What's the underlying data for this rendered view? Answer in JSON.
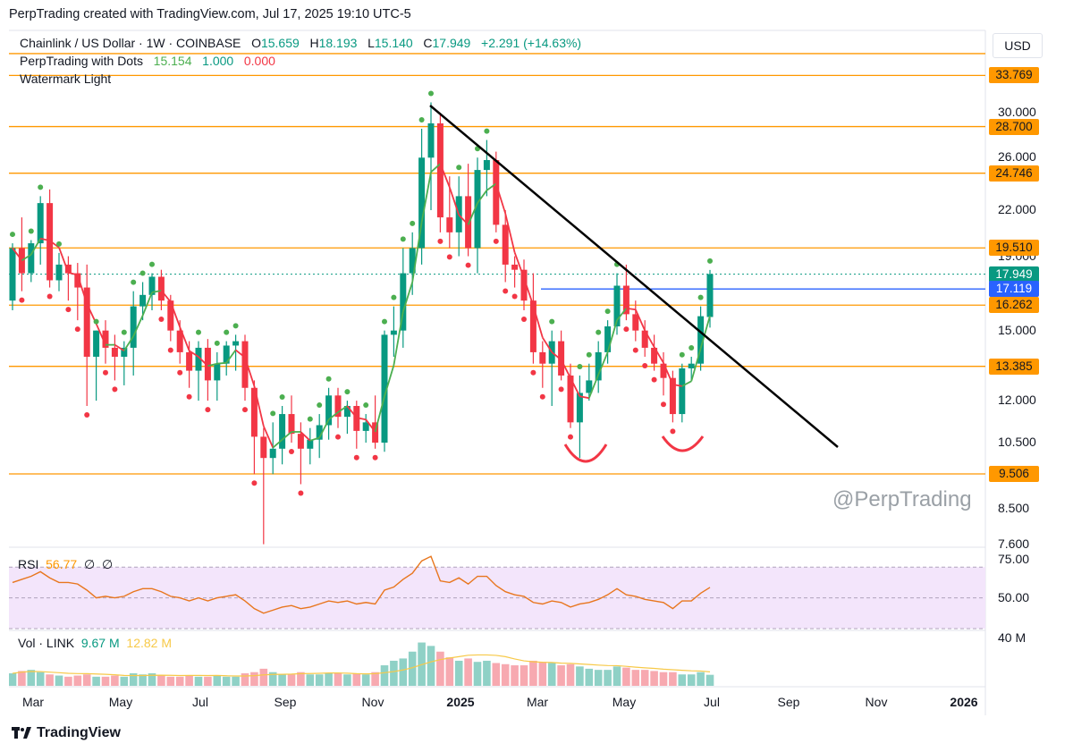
{
  "header": {
    "top_line": "PerpTrading created with TradingView.com, Jul 17, 2025 19:10 UTC-5",
    "symbol": "Chainlink / US Dollar · 1W · COINBASE",
    "o_label": "O",
    "o_value": "15.659",
    "h_label": "H",
    "h_value": "18.193",
    "l_label": "L",
    "l_value": "15.140",
    "c_label": "C",
    "c_value": "17.949",
    "change": "+2.291 (+14.63%)",
    "indicator_name": "PerpTrading with Dots",
    "ind_v1": "15.154",
    "ind_v2": "1.000",
    "ind_v3": "0.000",
    "watermark_line": "Watermark Light"
  },
  "currency_button": "USD",
  "watermark": "@PerpTrading",
  "brand": "TradingView",
  "rsi": {
    "label": "RSI",
    "value": "56.77",
    "extra1": "∅",
    "extra2": "∅",
    "axis": [
      "75.00",
      "50.00"
    ]
  },
  "volume": {
    "label": "Vol · LINK",
    "v1": "9.67 M",
    "v2": "12.82 M",
    "axis": "40 M"
  },
  "price_axis": [
    "30.000",
    "26.000",
    "22.000",
    "19.000",
    "15.000",
    "12.000",
    "10.500",
    "8.500",
    "7.600"
  ],
  "price_tags": [
    {
      "text": "33.769",
      "kind": "level"
    },
    {
      "text": "28.700",
      "kind": "level"
    },
    {
      "text": "24.746",
      "kind": "level"
    },
    {
      "text": "19.510",
      "kind": "level"
    },
    {
      "text": "17.949",
      "kind": "last"
    },
    {
      "text": "17.119",
      "kind": "line"
    },
    {
      "text": "16.262",
      "kind": "level"
    },
    {
      "text": "13.385",
      "kind": "level"
    },
    {
      "text": "9.506",
      "kind": "level"
    }
  ],
  "time_axis": [
    {
      "text": "Mar",
      "bold": false
    },
    {
      "text": "May",
      "bold": false
    },
    {
      "text": "Jul",
      "bold": false
    },
    {
      "text": "Sep",
      "bold": false
    },
    {
      "text": "Nov",
      "bold": false
    },
    {
      "text": "2025",
      "bold": true
    },
    {
      "text": "Mar",
      "bold": false
    },
    {
      "text": "May",
      "bold": false
    },
    {
      "text": "Jul",
      "bold": false
    },
    {
      "text": "Sep",
      "bold": false
    },
    {
      "text": "Nov",
      "bold": false
    },
    {
      "text": "2026",
      "bold": true
    }
  ],
  "colors": {
    "up": "#089981",
    "down": "#f23645",
    "level": "#ff9800",
    "blue": "#2962ff",
    "ma": "#4caf50",
    "rsi_line": "#e8761e",
    "rsi_band": "#f3e5fb",
    "trend": "#000000"
  },
  "chart_data": {
    "type": "candlestick",
    "title": "Chainlink / US Dollar · 1W · COINBASE",
    "ylim": [
      7.6,
      36
    ],
    "y_scale": "log",
    "horizontal_levels": [
      36.2,
      33.769,
      28.7,
      24.746,
      19.51,
      16.262,
      13.385,
      9.506
    ],
    "blue_level": 17.119,
    "last_price": 17.949,
    "ohlc": [
      [
        16.5,
        19.8,
        16.0,
        19.5
      ],
      [
        19.5,
        21.5,
        17.0,
        18.0
      ],
      [
        18.0,
        20.0,
        17.5,
        19.8
      ],
      [
        19.8,
        23.0,
        18.5,
        22.5
      ],
      [
        22.5,
        23.5,
        17.2,
        17.6
      ],
      [
        17.6,
        19.2,
        17.0,
        18.5
      ],
      [
        18.5,
        19.0,
        16.5,
        18.0
      ],
      [
        18.0,
        18.6,
        15.5,
        17.2
      ],
      [
        17.2,
        18.5,
        11.8,
        13.8
      ],
      [
        13.8,
        15.0,
        12.0,
        15.0
      ],
      [
        15.0,
        15.5,
        13.5,
        14.2
      ],
      [
        14.2,
        14.8,
        12.8,
        13.8
      ],
      [
        13.8,
        14.5,
        12.6,
        14.2
      ],
      [
        14.2,
        17.0,
        13.0,
        16.2
      ],
      [
        16.2,
        17.5,
        15.5,
        16.8
      ],
      [
        16.8,
        18.0,
        16.0,
        17.8
      ],
      [
        17.8,
        18.2,
        16.0,
        16.5
      ],
      [
        16.5,
        16.8,
        14.5,
        15.0
      ],
      [
        15.0,
        15.5,
        13.5,
        14.0
      ],
      [
        14.0,
        14.5,
        12.5,
        13.2
      ],
      [
        13.2,
        14.5,
        12.0,
        14.2
      ],
      [
        14.2,
        14.6,
        12.0,
        12.8
      ],
      [
        12.8,
        14.0,
        12.0,
        13.5
      ],
      [
        13.5,
        14.5,
        13.0,
        14.3
      ],
      [
        14.3,
        14.8,
        13.2,
        14.5
      ],
      [
        14.5,
        14.8,
        12.0,
        12.5
      ],
      [
        12.5,
        12.8,
        9.5,
        10.7
      ],
      [
        10.7,
        11.0,
        7.6,
        10.0
      ],
      [
        10.0,
        11.2,
        9.5,
        10.3
      ],
      [
        10.3,
        11.8,
        9.8,
        11.5
      ],
      [
        11.5,
        12.2,
        10.5,
        10.8
      ],
      [
        10.8,
        11.2,
        9.2,
        10.3
      ],
      [
        10.3,
        11.0,
        9.8,
        10.6
      ],
      [
        10.6,
        11.5,
        10.0,
        11.1
      ],
      [
        11.1,
        12.5,
        10.6,
        12.2
      ],
      [
        12.2,
        12.5,
        11.0,
        11.4
      ],
      [
        11.4,
        12.0,
        10.8,
        11.8
      ],
      [
        11.8,
        12.0,
        10.3,
        10.9
      ],
      [
        10.9,
        11.5,
        10.5,
        11.2
      ],
      [
        11.2,
        12.2,
        10.3,
        10.5
      ],
      [
        10.5,
        15.0,
        10.2,
        14.8
      ],
      [
        14.8,
        16.2,
        13.8,
        15.0
      ],
      [
        15.0,
        19.5,
        14.2,
        18.0
      ],
      [
        18.0,
        20.5,
        16.8,
        19.5
      ],
      [
        19.5,
        28.5,
        18.5,
        26.0
      ],
      [
        26.0,
        31.0,
        22.0,
        29.0
      ],
      [
        29.0,
        30.0,
        20.5,
        21.5
      ],
      [
        21.5,
        24.5,
        19.5,
        20.5
      ],
      [
        20.5,
        24.5,
        19.0,
        23.0
      ],
      [
        23.0,
        25.5,
        19.0,
        19.5
      ],
      [
        19.5,
        26.0,
        18.0,
        25.0
      ],
      [
        25.0,
        27.5,
        23.0,
        25.8
      ],
      [
        25.8,
        26.5,
        20.5,
        21.0
      ],
      [
        21.0,
        22.0,
        17.5,
        18.5
      ],
      [
        18.5,
        19.0,
        17.2,
        18.2
      ],
      [
        18.2,
        18.8,
        16.0,
        16.5
      ],
      [
        16.5,
        18.0,
        13.5,
        14.0
      ],
      [
        14.0,
        14.5,
        12.5,
        13.5
      ],
      [
        13.5,
        15.0,
        11.8,
        14.5
      ],
      [
        14.5,
        15.0,
        12.8,
        13.0
      ],
      [
        13.0,
        13.5,
        11.0,
        11.2
      ],
      [
        11.2,
        13.0,
        10.0,
        12.3
      ],
      [
        12.3,
        13.5,
        12.0,
        12.8
      ],
      [
        12.8,
        14.5,
        12.3,
        14.0
      ],
      [
        14.0,
        15.5,
        13.5,
        15.2
      ],
      [
        15.2,
        18.0,
        14.8,
        17.3
      ],
      [
        17.3,
        18.5,
        15.5,
        15.8
      ],
      [
        15.8,
        16.5,
        14.5,
        15.0
      ],
      [
        15.0,
        15.5,
        13.8,
        14.2
      ],
      [
        14.2,
        14.8,
        13.2,
        13.5
      ],
      [
        13.5,
        14.0,
        12.2,
        12.9
      ],
      [
        12.9,
        13.2,
        11.2,
        11.5
      ],
      [
        11.5,
        13.5,
        11.2,
        13.3
      ],
      [
        13.3,
        13.8,
        12.8,
        13.5
      ],
      [
        13.5,
        16.2,
        13.2,
        15.7
      ],
      [
        15.66,
        18.19,
        15.14,
        17.95
      ]
    ],
    "rsi_range": [
      30,
      80
    ],
    "rsi": [
      60,
      62,
      64,
      67,
      63,
      60,
      60,
      59,
      55,
      50,
      51,
      50,
      51,
      54,
      56,
      56,
      54,
      51,
      50,
      48,
      50,
      48,
      50,
      51,
      52,
      48,
      43,
      40,
      42,
      44,
      45,
      43,
      44,
      46,
      48,
      47,
      48,
      46,
      47,
      46,
      55,
      57,
      62,
      66,
      74,
      77,
      61,
      60,
      63,
      59,
      64,
      64,
      58,
      54,
      52,
      51,
      47,
      46,
      48,
      47,
      44,
      46,
      47,
      49,
      52,
      56,
      52,
      51,
      49,
      48,
      47,
      43,
      48,
      48,
      53,
      56.77
    ],
    "volume_max_m": 40,
    "volume_m": [
      11,
      13,
      14,
      12,
      10,
      9,
      8,
      9,
      10,
      8,
      8,
      9,
      8,
      11,
      10,
      11,
      9,
      8,
      8,
      9,
      8,
      8,
      9,
      8,
      8,
      11,
      12,
      15,
      12,
      10,
      10,
      12,
      10,
      10,
      11,
      11,
      10,
      11,
      10,
      12,
      18,
      22,
      24,
      30,
      38,
      35,
      30,
      25,
      22,
      24,
      21,
      22,
      20,
      19,
      18,
      18,
      22,
      21,
      20,
      18,
      19,
      17,
      15,
      14,
      14,
      17,
      16,
      14,
      14,
      13,
      12,
      12,
      10,
      10,
      12,
      9.67
    ]
  }
}
